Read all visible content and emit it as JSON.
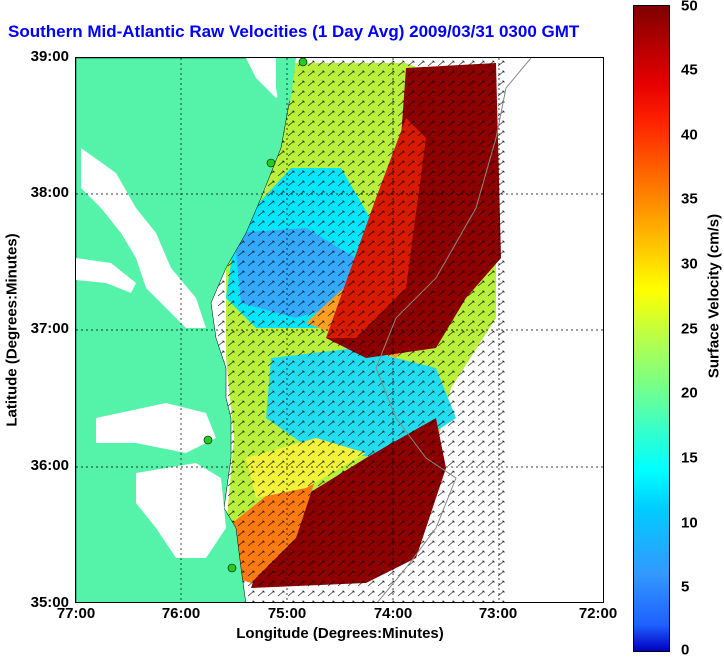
{
  "title": "Southern Mid-Atlantic Raw Velocities (1 Day Avg) 2009/03/31 0300 GMT",
  "xlabel": "Longitude (Degrees:Minutes)",
  "ylabel": "Latitude (Degrees:Minutes)",
  "x_ticks": [
    "77:00",
    "76:00",
    "75:00",
    "74:00",
    "73:00",
    "72:00"
  ],
  "y_ticks": [
    "39:00",
    "38:00",
    "37:00",
    "36:00",
    "35:00"
  ],
  "colorbar": {
    "label": "Surface Velocity (cm/s)",
    "ticks": [
      "50",
      "45",
      "40",
      "35",
      "30",
      "25",
      "20",
      "15",
      "10",
      "5",
      "0"
    ],
    "range": [
      0,
      50
    ]
  },
  "colors": {
    "land": "#55f2aa",
    "grid": "#000000",
    "title": "#0000ff",
    "station": "#22cc22"
  }
}
